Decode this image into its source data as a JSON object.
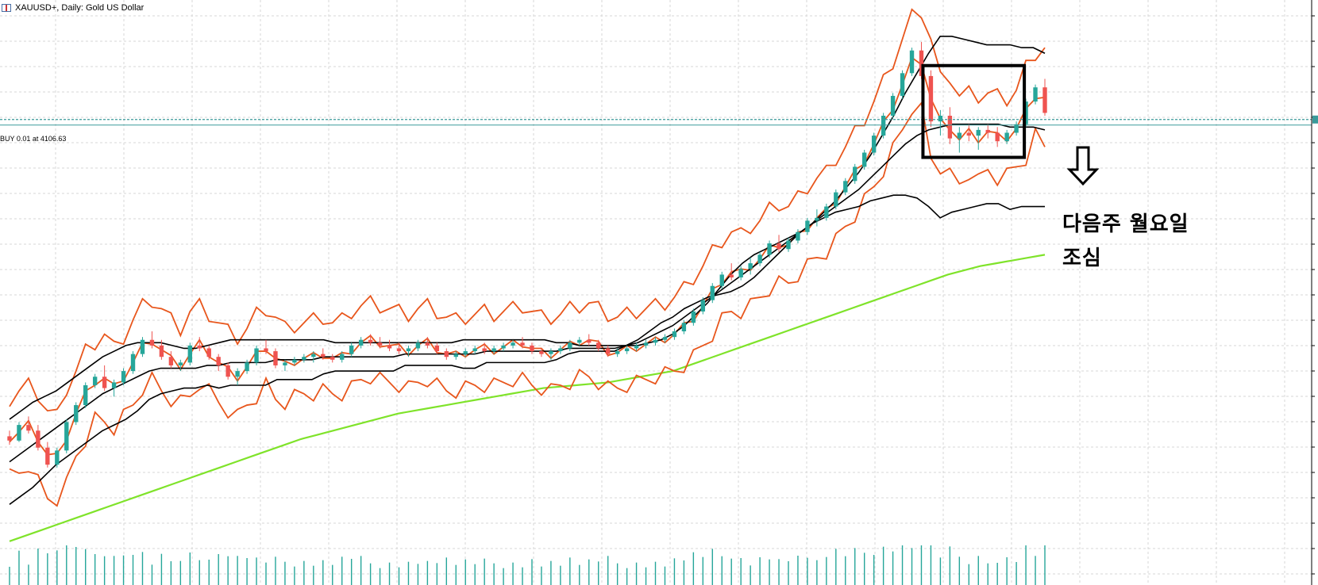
{
  "header": {
    "symbol_title": "XAUUSD+, Daily:  Gold US Dollar"
  },
  "order_line": {
    "label": "BUY 0.01 at 4106.63",
    "color": "#3a9a9a"
  },
  "annotation": {
    "line1": "다음주 월요일",
    "line2": "조심",
    "arrow_icon": "down-arrow-icon"
  },
  "colors": {
    "bull": "#26a69a",
    "bear": "#ef5350",
    "envelope": "#e8561c",
    "bollinger": "#000000",
    "ma_long": "#7fe32a",
    "volume": "#26a69a",
    "grid": "#d7d7d7"
  },
  "chart_data": {
    "type": "candlestick",
    "instrument": "XAUUSD+",
    "timeframe": "Daily",
    "order_price": 4106.63,
    "ylim": [
      2600,
      4500
    ],
    "candles": [
      [
        2990,
        3010,
        2960,
        2975
      ],
      [
        2975,
        3040,
        2970,
        3030
      ],
      [
        3030,
        3060,
        3000,
        3010
      ],
      [
        3010,
        3030,
        2940,
        2950
      ],
      [
        2950,
        2970,
        2880,
        2890
      ],
      [
        2890,
        2950,
        2880,
        2940
      ],
      [
        2940,
        3050,
        2930,
        3040
      ],
      [
        3040,
        3110,
        3030,
        3100
      ],
      [
        3100,
        3180,
        3090,
        3170
      ],
      [
        3170,
        3210,
        3160,
        3200
      ],
      [
        3200,
        3240,
        3150,
        3160
      ],
      [
        3160,
        3190,
        3130,
        3180
      ],
      [
        3180,
        3230,
        3170,
        3220
      ],
      [
        3220,
        3290,
        3210,
        3280
      ],
      [
        3280,
        3340,
        3270,
        3330
      ],
      [
        3330,
        3360,
        3300,
        3310
      ],
      [
        3310,
        3330,
        3260,
        3270
      ],
      [
        3270,
        3290,
        3230,
        3240
      ],
      [
        3240,
        3260,
        3220,
        3250
      ],
      [
        3250,
        3320,
        3240,
        3310
      ],
      [
        3310,
        3340,
        3290,
        3300
      ],
      [
        3300,
        3310,
        3260,
        3270
      ],
      [
        3270,
        3280,
        3220,
        3240
      ],
      [
        3240,
        3250,
        3190,
        3200
      ],
      [
        3200,
        3230,
        3170,
        3220
      ],
      [
        3220,
        3260,
        3210,
        3250
      ],
      [
        3250,
        3310,
        3240,
        3300
      ],
      [
        3300,
        3330,
        3280,
        3290
      ],
      [
        3290,
        3300,
        3230,
        3240
      ],
      [
        3240,
        3260,
        3220,
        3250
      ],
      [
        3250,
        3270,
        3240,
        3260
      ],
      [
        3260,
        3280,
        3250,
        3270
      ],
      [
        3270,
        3290,
        3250,
        3280
      ],
      [
        3280,
        3300,
        3260,
        3270
      ],
      [
        3270,
        3280,
        3250,
        3260
      ],
      [
        3260,
        3290,
        3250,
        3280
      ],
      [
        3280,
        3320,
        3270,
        3310
      ],
      [
        3310,
        3340,
        3300,
        3330
      ],
      [
        3330,
        3350,
        3310,
        3320
      ],
      [
        3320,
        3340,
        3300,
        3310
      ],
      [
        3310,
        3330,
        3290,
        3300
      ],
      [
        3300,
        3320,
        3280,
        3290
      ],
      [
        3290,
        3310,
        3270,
        3300
      ],
      [
        3300,
        3330,
        3290,
        3320
      ],
      [
        3320,
        3340,
        3300,
        3310
      ],
      [
        3310,
        3320,
        3280,
        3290
      ],
      [
        3290,
        3300,
        3260,
        3270
      ],
      [
        3270,
        3290,
        3260,
        3280
      ],
      [
        3280,
        3300,
        3270,
        3290
      ],
      [
        3290,
        3310,
        3280,
        3300
      ],
      [
        3300,
        3320,
        3280,
        3290
      ],
      [
        3290,
        3310,
        3280,
        3300
      ],
      [
        3300,
        3320,
        3290,
        3310
      ],
      [
        3310,
        3330,
        3300,
        3320
      ],
      [
        3320,
        3340,
        3300,
        3310
      ],
      [
        3310,
        3320,
        3280,
        3290
      ],
      [
        3290,
        3300,
        3270,
        3280
      ],
      [
        3280,
        3300,
        3260,
        3290
      ],
      [
        3290,
        3310,
        3280,
        3300
      ],
      [
        3300,
        3330,
        3290,
        3320
      ],
      [
        3320,
        3340,
        3310,
        3330
      ],
      [
        3330,
        3350,
        3310,
        3320
      ],
      [
        3320,
        3330,
        3290,
        3300
      ],
      [
        3300,
        3310,
        3270,
        3280
      ],
      [
        3280,
        3300,
        3270,
        3290
      ],
      [
        3290,
        3310,
        3280,
        3300
      ],
      [
        3300,
        3320,
        3290,
        3310
      ],
      [
        3310,
        3330,
        3300,
        3320
      ],
      [
        3320,
        3340,
        3310,
        3330
      ],
      [
        3330,
        3350,
        3320,
        3340
      ],
      [
        3340,
        3370,
        3330,
        3360
      ],
      [
        3360,
        3400,
        3350,
        3390
      ],
      [
        3390,
        3440,
        3380,
        3430
      ],
      [
        3430,
        3480,
        3420,
        3470
      ],
      [
        3470,
        3530,
        3460,
        3520
      ],
      [
        3520,
        3570,
        3510,
        3560
      ],
      [
        3560,
        3600,
        3540,
        3550
      ],
      [
        3550,
        3590,
        3540,
        3580
      ],
      [
        3580,
        3620,
        3560,
        3600
      ],
      [
        3600,
        3640,
        3590,
        3630
      ],
      [
        3630,
        3680,
        3620,
        3670
      ],
      [
        3670,
        3700,
        3640,
        3650
      ],
      [
        3650,
        3690,
        3640,
        3680
      ],
      [
        3680,
        3720,
        3670,
        3710
      ],
      [
        3710,
        3760,
        3700,
        3750
      ],
      [
        3750,
        3790,
        3730,
        3760
      ],
      [
        3760,
        3810,
        3750,
        3800
      ],
      [
        3800,
        3860,
        3790,
        3850
      ],
      [
        3850,
        3900,
        3840,
        3890
      ],
      [
        3890,
        3950,
        3880,
        3940
      ],
      [
        3940,
        4000,
        3930,
        3990
      ],
      [
        3990,
        4060,
        3980,
        4050
      ],
      [
        4050,
        4130,
        4040,
        4120
      ],
      [
        4120,
        4200,
        4110,
        4190
      ],
      [
        4190,
        4280,
        4180,
        4270
      ],
      [
        4270,
        4360,
        4260,
        4350
      ],
      [
        4350,
        4380,
        4250,
        4260
      ],
      [
        4260,
        4280,
        4080,
        4100
      ],
      [
        4100,
        4140,
        4050,
        4120
      ],
      [
        4120,
        4150,
        4020,
        4040
      ],
      [
        4040,
        4080,
        3990,
        4060
      ],
      [
        4060,
        4090,
        4030,
        4050
      ],
      [
        4050,
        4080,
        4000,
        4070
      ],
      [
        4070,
        4090,
        4040,
        4060
      ],
      [
        4060,
        4080,
        4010,
        4030
      ],
      [
        4030,
        4070,
        4020,
        4060
      ],
      [
        4060,
        4100,
        4050,
        4090
      ],
      [
        4090,
        4180,
        4080,
        4170
      ],
      [
        4170,
        4230,
        4160,
        4220
      ],
      [
        4220,
        4250,
        4120,
        4130
      ]
    ],
    "bollinger": {
      "upper": [
        3050,
        3080,
        3110,
        3130,
        3150,
        3180,
        3210,
        3240,
        3270,
        3290,
        3310,
        3320,
        3320,
        3320,
        3310,
        3300,
        3300,
        3310,
        3320,
        3330,
        3330,
        3330,
        3330,
        3330,
        3330,
        3330,
        3330,
        3330,
        3320,
        3320,
        3320,
        3320,
        3320,
        3320,
        3320,
        3320,
        3320,
        3320,
        3320,
        3330,
        3330,
        3330,
        3330,
        3330,
        3330,
        3330,
        3330,
        3320,
        3320,
        3310,
        3310,
        3310,
        3310,
        3310,
        3310,
        3320,
        3330,
        3350,
        3380,
        3420,
        3460,
        3510,
        3560,
        3600,
        3630,
        3650,
        3670,
        3690,
        3710,
        3740,
        3780,
        3820,
        3870,
        3920,
        3980,
        4050,
        4120,
        4200,
        4270,
        4340,
        4400,
        4400,
        4390,
        4380,
        4370,
        4370,
        4370,
        4360,
        4360,
        4340
      ],
      "middle": [
        2900,
        2930,
        2960,
        2990,
        3020,
        3050,
        3080,
        3110,
        3140,
        3160,
        3180,
        3200,
        3220,
        3230,
        3230,
        3230,
        3230,
        3240,
        3240,
        3250,
        3250,
        3250,
        3250,
        3260,
        3260,
        3260,
        3260,
        3270,
        3270,
        3270,
        3270,
        3270,
        3270,
        3270,
        3280,
        3280,
        3280,
        3280,
        3280,
        3280,
        3280,
        3290,
        3290,
        3290,
        3290,
        3290,
        3290,
        3290,
        3300,
        3300,
        3300,
        3300,
        3300,
        3310,
        3320,
        3340,
        3360,
        3380,
        3410,
        3440,
        3470,
        3500,
        3530,
        3560,
        3590,
        3620,
        3650,
        3680,
        3710,
        3740,
        3770,
        3800,
        3830,
        3860,
        3900,
        3940,
        3980,
        4020,
        4050,
        4070,
        4080,
        4090,
        4090,
        4090,
        4090,
        4090,
        4080,
        4080,
        4080,
        4070
      ]
    },
    "moving_average_long": [
      2620,
      2640,
      2660,
      2680,
      2700,
      2720,
      2740,
      2760,
      2780,
      2800,
      2820,
      2840,
      2860,
      2880,
      2900,
      2920,
      2940,
      2960,
      2980,
      2995,
      3010,
      3025,
      3040,
      3055,
      3070,
      3080,
      3090,
      3100,
      3110,
      3120,
      3130,
      3140,
      3150,
      3160,
      3165,
      3170,
      3175,
      3180,
      3190,
      3200,
      3210,
      3220,
      3240,
      3260,
      3280,
      3300,
      3320,
      3340,
      3360,
      3380,
      3400,
      3420,
      3440,
      3460,
      3480,
      3500,
      3520,
      3540,
      3560,
      3575,
      3590,
      3600,
      3610,
      3620,
      3630
    ],
    "annotation_box": {
      "from_candle": 97,
      "to_candle": 106
    }
  }
}
